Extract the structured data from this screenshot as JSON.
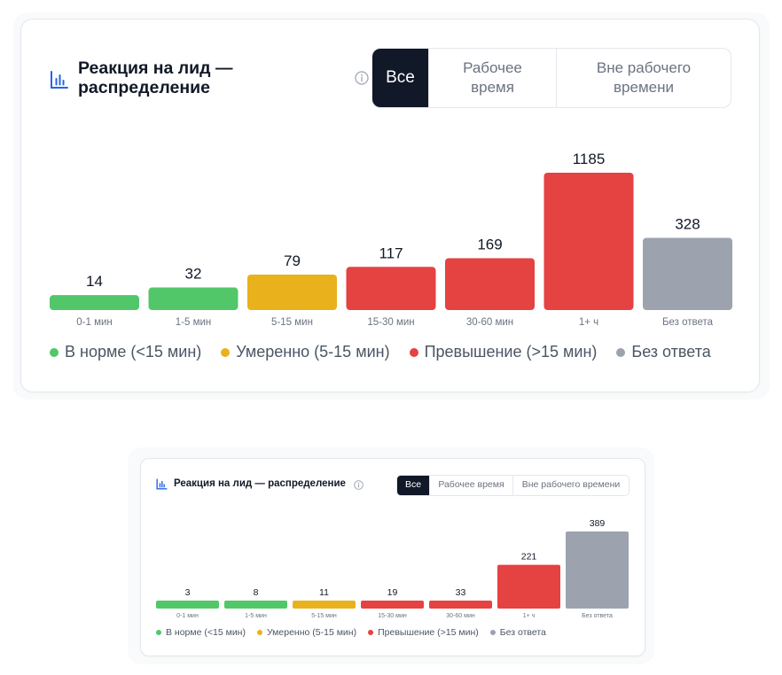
{
  "colors": {
    "green": "#51c769",
    "yellow": "#e9b21c",
    "red": "#e54242",
    "gray": "#9ca3af",
    "active_bg": "#111827"
  },
  "legend": [
    {
      "label": "В норме (<15 мин)",
      "color": "#51c769"
    },
    {
      "label": "Умеренно (5-15 мин)",
      "color": "#e9b21c"
    },
    {
      "label": "Превышение (>15 мин)",
      "color": "#e54242"
    },
    {
      "label": "Без ответа",
      "color": "#9ca3af"
    }
  ],
  "chart_data": [
    {
      "type": "bar",
      "title": "Реакция на лид — распределение",
      "filter_options": [
        "Все",
        "Рабочее время",
        "Вне рабочего времени"
      ],
      "active_filter": "Все",
      "categories": [
        "0-1 мин",
        "1-5 мин",
        "5-15 мин",
        "15-30 мин",
        "30-60 мин",
        "1+ ч",
        "Без ответа"
      ],
      "values": [
        14,
        32,
        79,
        117,
        169,
        1185,
        328
      ],
      "bar_colors": [
        "#51c769",
        "#51c769",
        "#e9b21c",
        "#e54242",
        "#e54242",
        "#e54242",
        "#9ca3af"
      ],
      "legend_position": "bottom"
    },
    {
      "type": "bar",
      "title": "Реакция на лид — распределение",
      "filter_options": [
        "Все",
        "Рабочее время",
        "Вне рабочего времени"
      ],
      "active_filter": "Все",
      "categories": [
        "0-1 мин",
        "1-5 мин",
        "5-15 мин",
        "15-30 мин",
        "30-60 мин",
        "1+ ч",
        "Без ответа"
      ],
      "values": [
        3,
        8,
        11,
        19,
        33,
        221,
        389
      ],
      "bar_colors": [
        "#51c769",
        "#51c769",
        "#e9b21c",
        "#e54242",
        "#e54242",
        "#e54242",
        "#9ca3af"
      ],
      "legend_position": "bottom"
    }
  ]
}
